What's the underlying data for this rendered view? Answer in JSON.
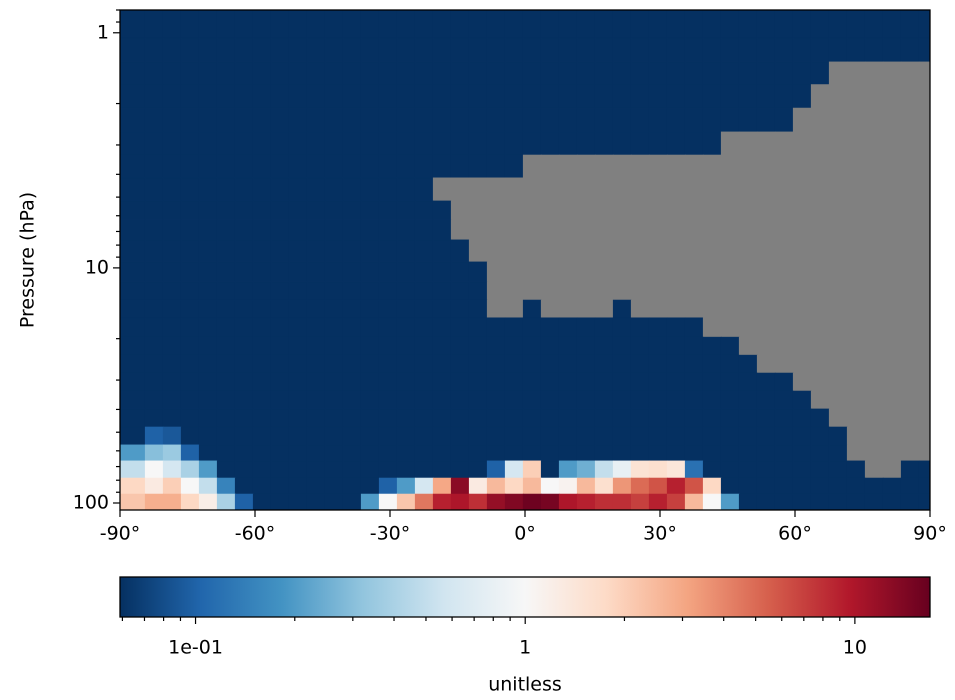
{
  "chart_data": {
    "type": "heatmap",
    "y_label": "Pressure (hPa)",
    "colorbar_label": "unitless",
    "x_edges": [
      -90,
      -84.4,
      -80.4,
      -76.4,
      -72.4,
      -68.4,
      -64.4,
      -60.4,
      -56.4,
      -52.4,
      -48.4,
      -44.4,
      -40.4,
      -36.4,
      -32.4,
      -28.4,
      -24.4,
      -20.4,
      -16.4,
      -12.4,
      -8.4,
      -4.4,
      -0.4,
      3.6,
      7.6,
      11.6,
      15.6,
      19.6,
      23.6,
      27.6,
      31.6,
      35.6,
      39.6,
      43.6,
      47.6,
      51.6,
      55.6,
      59.6,
      63.6,
      67.6,
      71.6,
      75.6,
      79.6,
      83.6,
      87.6,
      90
    ],
    "y_edges": [
      0.8,
      1.05,
      1.33,
      1.66,
      2.09,
      2.64,
      3.31,
      4.14,
      5.19,
      6.25,
      7.6,
      9.43,
      11.47,
      13.7,
      16.3,
      19.7,
      23.5,
      28.0,
      33.4,
      39.8,
      47.5,
      56.6,
      66.2,
      78.3,
      91.6,
      107.1
    ],
    "z": [
      [
        0.05,
        0.05,
        0.05,
        0.05,
        0.05,
        0.05,
        0.05,
        0.05,
        0.05,
        0.05,
        0.05,
        0.05,
        0.05,
        0.05,
        0.05,
        0.05,
        0.05,
        0.05,
        0.05,
        0.05,
        0.05,
        0.05,
        0.05,
        0.05,
        0.05,
        0.05,
        0.05,
        0.05,
        0.05,
        0.05,
        0.05,
        0.05,
        0.05,
        0.05,
        0.05,
        0.05,
        0.05,
        0.05,
        0.05,
        0.05,
        0.05,
        0.05,
        0.05,
        0.05,
        0.05
      ],
      [
        0.05,
        0.05,
        0.05,
        0.05,
        0.05,
        0.05,
        0.05,
        0.05,
        0.05,
        0.05,
        0.05,
        0.05,
        0.05,
        0.05,
        0.05,
        0.05,
        0.05,
        0.05,
        0.05,
        0.05,
        0.05,
        0.05,
        0.05,
        0.05,
        0.05,
        0.05,
        0.05,
        0.05,
        0.05,
        0.05,
        0.05,
        0.05,
        0.05,
        0.05,
        0.05,
        0.05,
        0.05,
        0.05,
        0.05,
        0.05,
        0.05,
        0.05,
        0.05,
        0.05,
        0.05
      ],
      [
        0.05,
        0.05,
        0.05,
        0.05,
        0.05,
        0.05,
        0.05,
        0.05,
        0.05,
        0.05,
        0.05,
        0.05,
        0.05,
        0.05,
        0.05,
        0.05,
        0.05,
        0.05,
        0.05,
        0.05,
        0.05,
        0.05,
        0.05,
        0.05,
        0.05,
        0.05,
        0.05,
        0.05,
        0.05,
        0.05,
        0.05,
        0.05,
        0.05,
        0.05,
        0.05,
        0.05,
        0.05,
        0.05,
        0.05,
        null,
        null,
        null,
        null,
        null,
        null
      ],
      [
        0.05,
        0.05,
        0.05,
        0.05,
        0.05,
        0.05,
        0.05,
        0.05,
        0.05,
        0.05,
        0.05,
        0.05,
        0.05,
        0.05,
        0.05,
        0.05,
        0.05,
        0.05,
        0.05,
        0.05,
        0.05,
        0.05,
        0.05,
        0.05,
        0.05,
        0.05,
        0.05,
        0.05,
        0.05,
        0.05,
        0.05,
        0.05,
        0.05,
        0.05,
        0.05,
        0.05,
        0.05,
        0.05,
        null,
        null,
        null,
        null,
        null,
        null,
        null
      ],
      [
        0.05,
        0.05,
        0.05,
        0.05,
        0.05,
        0.05,
        0.05,
        0.05,
        0.05,
        0.05,
        0.05,
        0.05,
        0.05,
        0.05,
        0.05,
        0.05,
        0.05,
        0.05,
        0.05,
        0.05,
        0.05,
        0.05,
        0.05,
        0.05,
        0.05,
        0.05,
        0.05,
        0.05,
        0.05,
        0.05,
        0.05,
        0.05,
        0.05,
        0.05,
        0.05,
        0.05,
        0.05,
        null,
        null,
        null,
        null,
        null,
        null,
        null,
        null
      ],
      [
        0.05,
        0.05,
        0.05,
        0.05,
        0.05,
        0.05,
        0.05,
        0.05,
        0.05,
        0.05,
        0.05,
        0.05,
        0.05,
        0.05,
        0.05,
        0.05,
        0.05,
        0.05,
        0.05,
        0.05,
        0.05,
        0.05,
        0.05,
        0.05,
        0.05,
        0.05,
        0.05,
        0.05,
        0.05,
        0.05,
        0.05,
        0.05,
        0.05,
        null,
        null,
        null,
        null,
        null,
        null,
        null,
        null,
        null,
        null,
        null,
        null
      ],
      [
        0.05,
        0.05,
        0.05,
        0.05,
        0.05,
        0.05,
        0.05,
        0.05,
        0.05,
        0.05,
        0.05,
        0.05,
        0.05,
        0.05,
        0.05,
        0.05,
        0.05,
        0.05,
        0.05,
        0.05,
        0.05,
        0.05,
        null,
        null,
        null,
        null,
        null,
        null,
        null,
        null,
        null,
        null,
        null,
        null,
        null,
        null,
        null,
        null,
        null,
        null,
        null,
        null,
        null,
        null,
        null
      ],
      [
        0.05,
        0.05,
        0.05,
        0.05,
        0.05,
        0.05,
        0.05,
        0.05,
        0.05,
        0.05,
        0.05,
        0.05,
        0.05,
        0.05,
        0.05,
        0.05,
        0.05,
        null,
        null,
        null,
        null,
        null,
        null,
        null,
        null,
        null,
        null,
        null,
        null,
        null,
        null,
        null,
        null,
        null,
        null,
        null,
        null,
        null,
        null,
        null,
        null,
        null,
        null,
        null,
        null
      ],
      [
        0.05,
        0.05,
        0.05,
        0.05,
        0.05,
        0.05,
        0.05,
        0.05,
        0.05,
        0.05,
        0.05,
        0.05,
        0.05,
        0.05,
        0.05,
        0.05,
        0.05,
        0.05,
        null,
        null,
        null,
        null,
        null,
        null,
        null,
        null,
        null,
        null,
        null,
        null,
        null,
        null,
        null,
        null,
        null,
        null,
        null,
        null,
        null,
        null,
        null,
        null,
        null,
        null,
        null
      ],
      [
        0.05,
        0.05,
        0.05,
        0.05,
        0.05,
        0.05,
        0.05,
        0.05,
        0.05,
        0.05,
        0.05,
        0.05,
        0.05,
        0.05,
        0.05,
        0.05,
        0.05,
        0.05,
        null,
        null,
        null,
        null,
        null,
        null,
        null,
        null,
        null,
        null,
        null,
        null,
        null,
        null,
        null,
        null,
        null,
        null,
        null,
        null,
        null,
        null,
        null,
        null,
        null,
        null,
        null
      ],
      [
        0.05,
        0.05,
        0.05,
        0.05,
        0.05,
        0.05,
        0.05,
        0.05,
        0.05,
        0.05,
        0.05,
        0.05,
        0.05,
        0.05,
        0.05,
        0.05,
        0.05,
        0.05,
        0.05,
        null,
        null,
        null,
        null,
        null,
        null,
        null,
        null,
        null,
        null,
        null,
        null,
        null,
        null,
        null,
        null,
        null,
        null,
        null,
        null,
        null,
        null,
        null,
        null,
        null,
        null
      ],
      [
        0.05,
        0.05,
        0.05,
        0.05,
        0.05,
        0.05,
        0.05,
        0.05,
        0.05,
        0.05,
        0.05,
        0.05,
        0.05,
        0.05,
        0.05,
        0.05,
        0.05,
        0.05,
        0.05,
        0.05,
        null,
        null,
        null,
        null,
        null,
        null,
        null,
        null,
        null,
        null,
        null,
        null,
        null,
        null,
        null,
        null,
        null,
        null,
        null,
        null,
        null,
        null,
        null,
        null,
        null
      ],
      [
        0.05,
        0.05,
        0.05,
        0.05,
        0.05,
        0.05,
        0.05,
        0.05,
        0.05,
        0.05,
        0.05,
        0.05,
        0.05,
        0.05,
        0.05,
        0.05,
        0.05,
        0.05,
        0.05,
        0.05,
        null,
        null,
        null,
        null,
        null,
        null,
        null,
        null,
        null,
        null,
        null,
        null,
        null,
        null,
        null,
        null,
        null,
        null,
        null,
        null,
        null,
        null,
        null,
        null,
        null
      ],
      [
        0.05,
        0.05,
        0.05,
        0.05,
        0.05,
        0.05,
        0.05,
        0.05,
        0.05,
        0.05,
        0.05,
        0.05,
        0.05,
        0.05,
        0.05,
        0.05,
        0.05,
        0.05,
        0.05,
        0.05,
        null,
        null,
        0.05,
        null,
        null,
        null,
        null,
        0.05,
        null,
        null,
        null,
        null,
        null,
        null,
        null,
        null,
        null,
        null,
        null,
        null,
        null,
        null,
        null,
        null,
        null
      ],
      [
        0.05,
        0.05,
        0.05,
        0.05,
        0.05,
        0.05,
        0.05,
        0.05,
        0.05,
        0.05,
        0.05,
        0.05,
        0.05,
        0.05,
        0.05,
        0.05,
        0.05,
        0.05,
        0.05,
        0.05,
        0.05,
        0.05,
        0.05,
        0.05,
        0.05,
        0.05,
        0.05,
        0.05,
        0.05,
        0.05,
        0.05,
        0.05,
        null,
        null,
        null,
        null,
        null,
        null,
        null,
        null,
        null,
        null,
        null,
        null,
        null
      ],
      [
        0.05,
        0.05,
        0.05,
        0.05,
        0.05,
        0.05,
        0.05,
        0.05,
        0.05,
        0.05,
        0.05,
        0.05,
        0.05,
        0.05,
        0.05,
        0.05,
        0.05,
        0.05,
        0.05,
        0.05,
        0.05,
        0.05,
        0.05,
        0.05,
        0.05,
        0.05,
        0.05,
        0.05,
        0.05,
        0.05,
        0.05,
        0.05,
        0.05,
        0.05,
        null,
        null,
        null,
        null,
        null,
        null,
        null,
        null,
        null,
        null,
        null
      ],
      [
        0.05,
        0.05,
        0.05,
        0.05,
        0.05,
        0.05,
        0.05,
        0.05,
        0.05,
        0.05,
        0.05,
        0.05,
        0.05,
        0.05,
        0.05,
        0.05,
        0.05,
        0.05,
        0.05,
        0.05,
        0.05,
        0.05,
        0.05,
        0.05,
        0.05,
        0.05,
        0.05,
        0.05,
        0.05,
        0.05,
        0.05,
        0.05,
        0.05,
        0.05,
        0.05,
        null,
        null,
        null,
        null,
        null,
        null,
        null,
        null,
        null,
        null
      ],
      [
        0.05,
        0.05,
        0.05,
        0.05,
        0.05,
        0.05,
        0.05,
        0.05,
        0.05,
        0.05,
        0.05,
        0.05,
        0.05,
        0.05,
        0.05,
        0.05,
        0.05,
        0.05,
        0.05,
        0.05,
        0.05,
        0.05,
        0.05,
        0.05,
        0.05,
        0.05,
        0.05,
        0.05,
        0.05,
        0.05,
        0.05,
        0.05,
        0.05,
        0.05,
        0.05,
        0.05,
        0.05,
        null,
        null,
        null,
        null,
        null,
        null,
        null,
        null
      ],
      [
        0.05,
        0.05,
        0.05,
        0.05,
        0.05,
        0.05,
        0.05,
        0.05,
        0.05,
        0.05,
        0.05,
        0.05,
        0.05,
        0.05,
        0.05,
        0.05,
        0.05,
        0.05,
        0.05,
        0.05,
        0.05,
        0.05,
        0.05,
        0.05,
        0.05,
        0.05,
        0.05,
        0.05,
        0.05,
        0.05,
        0.05,
        0.05,
        0.05,
        0.05,
        0.05,
        0.05,
        0.05,
        0.05,
        null,
        null,
        null,
        null,
        null,
        null,
        null
      ],
      [
        0.05,
        0.05,
        0.05,
        0.05,
        0.05,
        0.05,
        0.05,
        0.05,
        0.05,
        0.05,
        0.05,
        0.05,
        0.05,
        0.05,
        0.05,
        0.05,
        0.05,
        0.05,
        0.05,
        0.05,
        0.05,
        0.05,
        0.05,
        0.05,
        0.05,
        0.05,
        0.05,
        0.05,
        0.05,
        0.05,
        0.05,
        0.05,
        0.05,
        0.05,
        0.05,
        0.05,
        0.05,
        0.05,
        0.05,
        null,
        null,
        null,
        null,
        null,
        null
      ],
      [
        0.05,
        0.1,
        0.09,
        0.05,
        0.05,
        0.05,
        0.05,
        0.05,
        0.05,
        0.05,
        0.05,
        0.05,
        0.05,
        0.05,
        0.05,
        0.05,
        0.05,
        0.05,
        0.05,
        0.05,
        0.05,
        0.05,
        0.05,
        0.05,
        0.05,
        0.05,
        0.05,
        0.05,
        0.05,
        0.05,
        0.05,
        0.05,
        0.05,
        0.05,
        0.05,
        0.05,
        0.05,
        0.05,
        0.05,
        0.05,
        null,
        null,
        null,
        null,
        null
      ],
      [
        0.2,
        0.3,
        0.35,
        0.1,
        0.05,
        0.05,
        0.05,
        0.05,
        0.05,
        0.05,
        0.05,
        0.05,
        0.05,
        0.05,
        0.05,
        0.05,
        0.05,
        0.05,
        0.05,
        0.05,
        0.05,
        0.05,
        0.05,
        0.05,
        0.05,
        0.05,
        0.05,
        0.05,
        0.05,
        0.05,
        0.05,
        0.05,
        0.05,
        0.05,
        0.05,
        0.05,
        0.05,
        0.05,
        0.05,
        0.05,
        null,
        null,
        null,
        null,
        null
      ],
      [
        0.5,
        1.0,
        0.6,
        0.4,
        0.2,
        0.05,
        0.05,
        0.05,
        0.05,
        0.05,
        0.05,
        0.05,
        0.05,
        0.05,
        0.05,
        0.05,
        0.05,
        0.05,
        0.05,
        0.05,
        0.1,
        0.6,
        2,
        0.05,
        0.2,
        0.25,
        0.5,
        0.8,
        1.5,
        1.6,
        1.4,
        0.12,
        0.05,
        0.05,
        0.05,
        0.05,
        0.05,
        0.05,
        0.05,
        0.05,
        0.05,
        null,
        null,
        0.05,
        0.05
      ],
      [
        1.8,
        1.3,
        2,
        1.0,
        0.5,
        0.15,
        0.05,
        0.05,
        0.05,
        0.05,
        0.05,
        0.05,
        0.05,
        0.05,
        0.1,
        0.2,
        0.6,
        3,
        13,
        1.3,
        2.5,
        1.8,
        2.5,
        1.0,
        1.1,
        2.5,
        1.6,
        3.5,
        5,
        6,
        9,
        6,
        1.8,
        0.05,
        0.05,
        0.05,
        0.05,
        0.05,
        0.05,
        0.05,
        0.05,
        0.05,
        0.05,
        0.05,
        0.05
      ],
      [
        2.2,
        2.8,
        2.8,
        1.8,
        1.2,
        0.4,
        0.1,
        0.05,
        0.05,
        0.05,
        0.05,
        0.05,
        0.05,
        0.2,
        1.0,
        2.2,
        4.5,
        9,
        10,
        8,
        12,
        14,
        16,
        15,
        10,
        9,
        8,
        8,
        7,
        9,
        7,
        2.5,
        1.0,
        0.2,
        0.05,
        0.05,
        0.05,
        0.05,
        0.05,
        0.05,
        0.05,
        0.05,
        0.05,
        0.05,
        0.05
      ]
    ],
    "xlim": [
      -90,
      90
    ],
    "xticks": [
      {
        "value": -90,
        "label": "-90°"
      },
      {
        "value": -60,
        "label": "-60°"
      },
      {
        "value": -30,
        "label": "-30°"
      },
      {
        "value": 0,
        "label": "0°"
      },
      {
        "value": 30,
        "label": "30°"
      },
      {
        "value": 60,
        "label": "60°"
      },
      {
        "value": 90,
        "label": "90°"
      }
    ],
    "ylim": [
      107.1,
      0.8
    ],
    "y_log": true,
    "yticks": [
      1,
      10,
      100
    ],
    "yminorticks": [
      0.8,
      0.9,
      2,
      3,
      4,
      5,
      6,
      7,
      8,
      9,
      20,
      30,
      40,
      50,
      60,
      70,
      80,
      90
    ],
    "colormap": [
      "#053061",
      "#2166ac",
      "#4393c3",
      "#92c5de",
      "#d1e5f0",
      "#f7f7f7",
      "#fddbc7",
      "#f4a582",
      "#d6604d",
      "#b2182b",
      "#67001f"
    ],
    "nan_color": "#808080",
    "clim": [
      0.059,
      16.9
    ],
    "c_log": true,
    "cticks": [
      {
        "value": 0.1,
        "label": "1e-01"
      },
      1,
      10
    ],
    "cminorticks": [
      0.06,
      0.07,
      0.08,
      0.09,
      0.2,
      0.3,
      0.4,
      0.5,
      0.6,
      0.7,
      0.8,
      0.9,
      2,
      3,
      4,
      5,
      6,
      7,
      8,
      9
    ]
  }
}
